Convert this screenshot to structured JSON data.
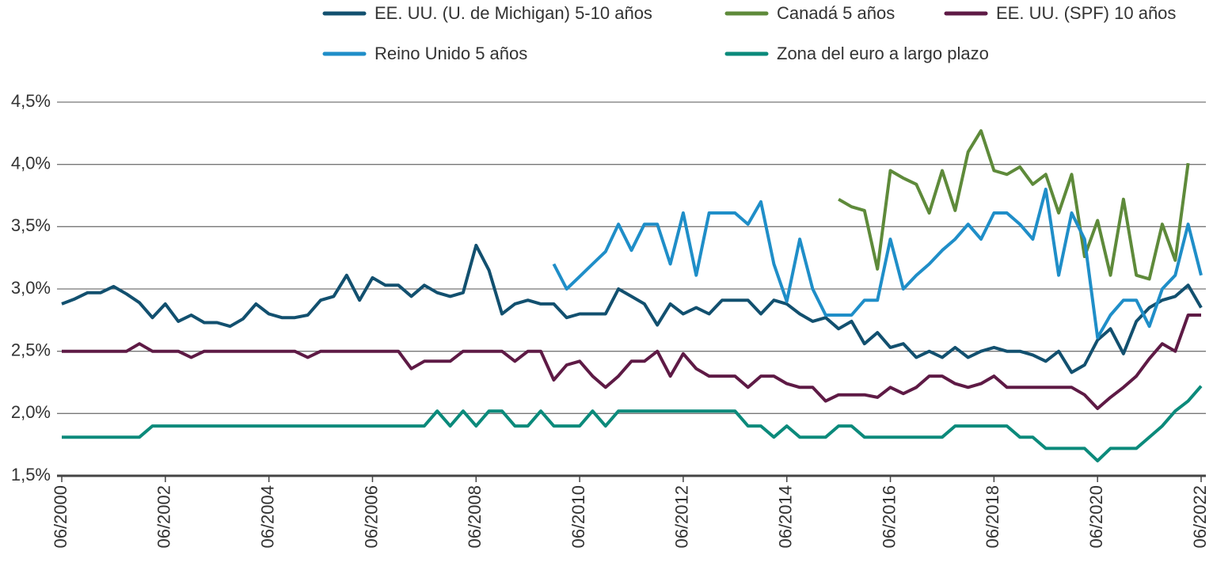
{
  "chart_data": {
    "type": "line",
    "x": [
      "2000-06",
      "2000-09",
      "2000-12",
      "2001-03",
      "2001-06",
      "2001-09",
      "2001-12",
      "2002-03",
      "2002-06",
      "2002-09",
      "2002-12",
      "2003-03",
      "2003-06",
      "2003-09",
      "2003-12",
      "2004-03",
      "2004-06",
      "2004-09",
      "2004-12",
      "2005-03",
      "2005-06",
      "2005-09",
      "2005-12",
      "2006-03",
      "2006-06",
      "2006-09",
      "2006-12",
      "2007-03",
      "2007-06",
      "2007-09",
      "2007-12",
      "2008-03",
      "2008-06",
      "2008-09",
      "2008-12",
      "2009-03",
      "2009-06",
      "2009-09",
      "2009-12",
      "2010-03",
      "2010-06",
      "2010-09",
      "2010-12",
      "2011-03",
      "2011-06",
      "2011-09",
      "2011-12",
      "2012-03",
      "2012-06",
      "2012-09",
      "2012-12",
      "2013-03",
      "2013-06",
      "2013-09",
      "2013-12",
      "2014-03",
      "2014-06",
      "2014-09",
      "2014-12",
      "2015-03",
      "2015-06",
      "2015-09",
      "2015-12",
      "2016-03",
      "2016-06",
      "2016-09",
      "2016-12",
      "2017-03",
      "2017-06",
      "2017-09",
      "2017-12",
      "2018-03",
      "2018-06",
      "2018-09",
      "2018-12",
      "2019-03",
      "2019-06",
      "2019-09",
      "2019-12",
      "2020-03",
      "2020-06",
      "2020-09",
      "2020-12",
      "2021-03",
      "2021-06",
      "2021-09",
      "2021-12",
      "2022-03",
      "2022-06"
    ],
    "series": [
      {
        "name": "EE. UU. (U. de Michigan) 5-10 años",
        "color": "#12506f",
        "values": [
          2.88,
          2.92,
          2.97,
          2.97,
          3.02,
          2.96,
          2.89,
          2.77,
          2.88,
          2.74,
          2.79,
          2.73,
          2.73,
          2.7,
          2.76,
          2.88,
          2.8,
          2.77,
          2.77,
          2.79,
          2.91,
          2.94,
          3.11,
          2.91,
          3.09,
          3.03,
          3.03,
          2.94,
          3.03,
          2.97,
          2.94,
          2.97,
          3.35,
          3.15,
          2.8,
          2.88,
          2.91,
          2.88,
          2.88,
          2.77,
          2.8,
          2.8,
          2.8,
          3.0,
          2.94,
          2.88,
          2.71,
          2.88,
          2.8,
          2.85,
          2.8,
          2.91,
          2.91,
          2.91,
          2.8,
          2.91,
          2.88,
          2.8,
          2.74,
          2.77,
          2.68,
          2.74,
          2.56,
          2.65,
          2.53,
          2.56,
          2.45,
          2.5,
          2.45,
          2.53,
          2.45,
          2.5,
          2.53,
          2.5,
          2.5,
          2.47,
          2.42,
          2.5,
          2.33,
          2.39,
          2.59,
          2.68,
          2.48,
          2.74,
          2.85,
          2.91,
          2.94,
          3.03,
          2.85
        ]
      },
      {
        "name": "Canadá 5 años",
        "color": "#5e8a3a",
        "values": [
          null,
          null,
          null,
          null,
          null,
          null,
          null,
          null,
          null,
          null,
          null,
          null,
          null,
          null,
          null,
          null,
          null,
          null,
          null,
          null,
          null,
          null,
          null,
          null,
          null,
          null,
          null,
          null,
          null,
          null,
          null,
          null,
          null,
          null,
          null,
          null,
          null,
          null,
          null,
          null,
          null,
          null,
          null,
          null,
          null,
          null,
          null,
          null,
          null,
          null,
          null,
          null,
          null,
          null,
          null,
          null,
          null,
          null,
          null,
          null,
          3.72,
          3.66,
          3.63,
          3.16,
          3.95,
          3.89,
          3.84,
          3.61,
          3.95,
          3.63,
          4.1,
          4.27,
          3.95,
          3.92,
          3.98,
          3.84,
          3.92,
          3.61,
          3.92,
          3.26,
          3.55,
          3.11,
          3.72,
          3.11,
          3.08,
          3.52,
          3.23,
          4.01,
          null
        ]
      },
      {
        "name": "EE. UU.  (SPF) 10 años",
        "color": "#5e1a45",
        "values": [
          2.5,
          2.5,
          2.5,
          2.5,
          2.5,
          2.5,
          2.56,
          2.5,
          2.5,
          2.5,
          2.45,
          2.5,
          2.5,
          2.5,
          2.5,
          2.5,
          2.5,
          2.5,
          2.5,
          2.45,
          2.5,
          2.5,
          2.5,
          2.5,
          2.5,
          2.5,
          2.5,
          2.36,
          2.42,
          2.42,
          2.42,
          2.5,
          2.5,
          2.5,
          2.5,
          2.42,
          2.5,
          2.5,
          2.27,
          2.39,
          2.42,
          2.3,
          2.21,
          2.3,
          2.42,
          2.42,
          2.5,
          2.3,
          2.48,
          2.36,
          2.3,
          2.3,
          2.3,
          2.21,
          2.3,
          2.3,
          2.24,
          2.21,
          2.21,
          2.1,
          2.15,
          2.15,
          2.15,
          2.13,
          2.21,
          2.16,
          2.21,
          2.3,
          2.3,
          2.24,
          2.21,
          2.24,
          2.3,
          2.21,
          2.21,
          2.21,
          2.21,
          2.21,
          2.21,
          2.15,
          2.04,
          2.13,
          2.21,
          2.3,
          2.44,
          2.56,
          2.5,
          2.79,
          2.79
        ]
      },
      {
        "name": "Reino Unido 5 años",
        "color": "#1f8ec8",
        "values": [
          null,
          null,
          null,
          null,
          null,
          null,
          null,
          null,
          null,
          null,
          null,
          null,
          null,
          null,
          null,
          null,
          null,
          null,
          null,
          null,
          null,
          null,
          null,
          null,
          null,
          null,
          null,
          null,
          null,
          null,
          null,
          null,
          null,
          null,
          null,
          null,
          null,
          null,
          3.2,
          3.0,
          3.1,
          3.2,
          3.3,
          3.52,
          3.31,
          3.52,
          3.52,
          3.2,
          3.61,
          3.11,
          3.61,
          3.61,
          3.61,
          3.52,
          3.7,
          3.2,
          2.9,
          3.4,
          3.0,
          2.79,
          2.79,
          2.79,
          2.91,
          2.91,
          3.4,
          3.0,
          3.11,
          3.2,
          3.31,
          3.4,
          3.52,
          3.4,
          3.61,
          3.61,
          3.52,
          3.4,
          3.8,
          3.11,
          3.61,
          3.4,
          2.61,
          2.79,
          2.91,
          2.91,
          2.7,
          3.0,
          3.11,
          3.52,
          3.11
        ]
      },
      {
        "name": "Zona del euro a largo plazo",
        "color": "#0b8a7b",
        "values": [
          1.81,
          1.81,
          1.81,
          1.81,
          1.81,
          1.81,
          1.81,
          1.9,
          1.9,
          1.9,
          1.9,
          1.9,
          1.9,
          1.9,
          1.9,
          1.9,
          1.9,
          1.9,
          1.9,
          1.9,
          1.9,
          1.9,
          1.9,
          1.9,
          1.9,
          1.9,
          1.9,
          1.9,
          1.9,
          2.02,
          1.9,
          2.02,
          1.9,
          2.02,
          2.02,
          1.9,
          1.9,
          2.02,
          1.9,
          1.9,
          1.9,
          2.02,
          1.9,
          2.02,
          2.02,
          2.02,
          2.02,
          2.02,
          2.02,
          2.02,
          2.02,
          2.02,
          2.02,
          1.9,
          1.9,
          1.81,
          1.9,
          1.81,
          1.81,
          1.81,
          1.9,
          1.9,
          1.81,
          1.81,
          1.81,
          1.81,
          1.81,
          1.81,
          1.81,
          1.9,
          1.9,
          1.9,
          1.9,
          1.9,
          1.81,
          1.81,
          1.72,
          1.72,
          1.72,
          1.72,
          1.62,
          1.72,
          1.72,
          1.72,
          1.81,
          1.9,
          2.02,
          2.1,
          2.22
        ]
      }
    ],
    "xlim": [
      "2000-06",
      "2022-06"
    ],
    "xticks": [
      {
        "value": "2000-06",
        "label": "06/2000"
      },
      {
        "value": "2002-06",
        "label": "06/2002"
      },
      {
        "value": "2004-06",
        "label": "06/2004"
      },
      {
        "value": "2006-06",
        "label": "06/2006"
      },
      {
        "value": "2008-06",
        "label": "06/2008"
      },
      {
        "value": "2010-06",
        "label": "06/2010"
      },
      {
        "value": "2012-06",
        "label": "06/2012"
      },
      {
        "value": "2014-06",
        "label": "06/2014"
      },
      {
        "value": "2016-06",
        "label": "06/2016"
      },
      {
        "value": "2018-06",
        "label": "06/2018"
      },
      {
        "value": "2020-06",
        "label": "06/2020"
      },
      {
        "value": "2022-06",
        "label": "06/2022"
      }
    ],
    "ylim": [
      1.5,
      4.5
    ],
    "yticks": [
      {
        "value": 1.5,
        "label": "1,5%"
      },
      {
        "value": 2.0,
        "label": "2,0%"
      },
      {
        "value": 2.5,
        "label": "2,5%"
      },
      {
        "value": 3.0,
        "label": "3,0%"
      },
      {
        "value": 3.5,
        "label": "3,5%"
      },
      {
        "value": 4.0,
        "label": "4,0%"
      },
      {
        "value": 4.5,
        "label": "4,5%"
      }
    ],
    "grid": true
  }
}
